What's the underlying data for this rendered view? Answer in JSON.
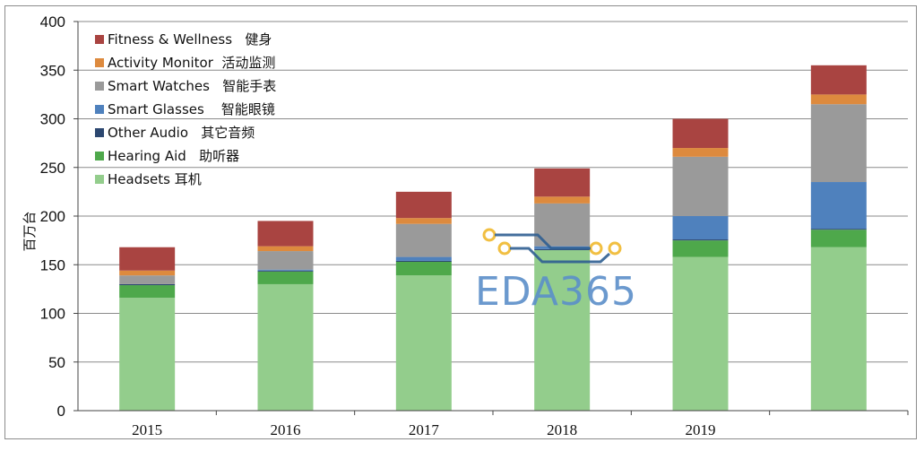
{
  "chart_data": {
    "type": "bar",
    "stacked": true,
    "ylabel": "百万台",
    "ylim": [
      0,
      400
    ],
    "yticks": [
      0,
      50,
      100,
      150,
      200,
      250,
      300,
      350,
      400
    ],
    "categories": [
      "2015",
      "2016",
      "2017",
      "2018",
      "2019",
      ""
    ],
    "series": [
      {
        "name": "Headsets 耳机",
        "color": "#93cd8c",
        "values": [
          116,
          130,
          139,
          165,
          158,
          168
        ]
      },
      {
        "name": "Hearing Aid   助听器",
        "color": "#4ea84b",
        "values": [
          13,
          13,
          14,
          0,
          17,
          18
        ]
      },
      {
        "name": "Other Audio   其它音频",
        "color": "#2c4770",
        "values": [
          1,
          1,
          1,
          1,
          1,
          1
        ]
      },
      {
        "name": "Smart Glasses    智能眼镜",
        "color": "#4f81bd",
        "values": [
          0,
          1,
          4,
          3,
          24,
          48
        ]
      },
      {
        "name": "Smart Watches   智能手表",
        "color": "#9a9a9a",
        "values": [
          9,
          19,
          34,
          44,
          61,
          80
        ]
      },
      {
        "name": "Activity Monitor  活动监测",
        "color": "#dd8a3e",
        "values": [
          5,
          5,
          6,
          7,
          9,
          10
        ]
      },
      {
        "name": "Fitness & Wellness   健身",
        "color": "#a94441",
        "values": [
          24,
          26,
          27,
          29,
          30,
          30
        ]
      }
    ],
    "grid": true,
    "legend_position": "top-left"
  },
  "watermark": {
    "text": "EDA365",
    "accent": "#f0b92e",
    "line_color": "#2f5f92"
  }
}
